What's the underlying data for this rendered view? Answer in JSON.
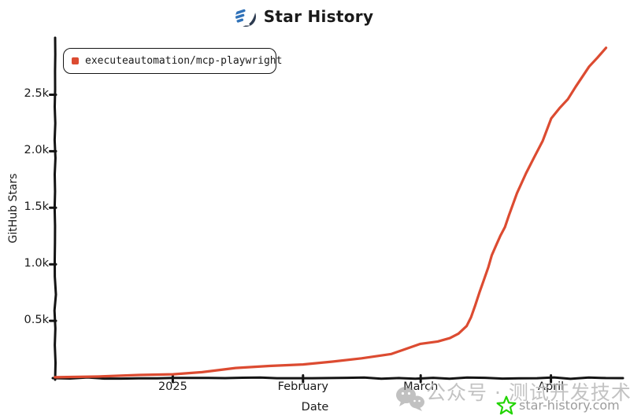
{
  "header": {
    "title": "Star History"
  },
  "brand": {
    "logo_navy": "#2c3a4f",
    "logo_blue": "#3072b8",
    "accent_red": "#dc4b31",
    "axis_black": "#141414",
    "watermark_gray": "#bcbcbc",
    "star_green": "#21d400"
  },
  "legend": {
    "series_label": "executeautomation/mcp-playwright",
    "marker_color": "#dc4b31"
  },
  "axes": {
    "y_label": "GitHub Stars",
    "x_label": "Date",
    "y_ticks": [
      {
        "label": "0.5k",
        "value": 500
      },
      {
        "label": "1.0k",
        "value": 1000
      },
      {
        "label": "1.5k",
        "value": 1500
      },
      {
        "label": "2.0k",
        "value": 2000
      },
      {
        "label": "2.5k",
        "value": 2500
      }
    ],
    "x_ticks": [
      {
        "label": "2025",
        "date": "2025-01-01"
      },
      {
        "label": "February",
        "date": "2025-02-01"
      },
      {
        "label": "March",
        "date": "2025-03-01"
      },
      {
        "label": "April",
        "date": "2025-04-01"
      }
    ]
  },
  "watermark": {
    "wechat_text": "公众号 · 测试开发技术",
    "site_text": "star-history.com"
  },
  "chart_data": {
    "type": "line",
    "title": "Star History",
    "xlabel": "Date",
    "ylabel": "GitHub Stars",
    "x_range": [
      "2024-12-04",
      "2025-04-14"
    ],
    "ylim": [
      0,
      2990
    ],
    "grid": false,
    "legend_position": "top-left",
    "series": [
      {
        "name": "executeautomation/mcp-playwright",
        "color": "#dc4b31",
        "points": [
          [
            "2024-12-04",
            0
          ],
          [
            "2024-12-14",
            8
          ],
          [
            "2024-12-24",
            18
          ],
          [
            "2025-01-01",
            26
          ],
          [
            "2025-01-08",
            48
          ],
          [
            "2025-01-16",
            80
          ],
          [
            "2025-01-24",
            96
          ],
          [
            "2025-02-01",
            112
          ],
          [
            "2025-02-08",
            140
          ],
          [
            "2025-02-15",
            170
          ],
          [
            "2025-02-22",
            210
          ],
          [
            "2025-03-01",
            298
          ],
          [
            "2025-03-05",
            322
          ],
          [
            "2025-03-08",
            345
          ],
          [
            "2025-03-10",
            388
          ],
          [
            "2025-03-12",
            450
          ],
          [
            "2025-03-13",
            530
          ],
          [
            "2025-03-14",
            640
          ],
          [
            "2025-03-15",
            750
          ],
          [
            "2025-03-16",
            850
          ],
          [
            "2025-03-17",
            980
          ],
          [
            "2025-03-18",
            1080
          ],
          [
            "2025-03-19",
            1170
          ],
          [
            "2025-03-20",
            1255
          ],
          [
            "2025-03-21",
            1330
          ],
          [
            "2025-03-22",
            1430
          ],
          [
            "2025-03-24",
            1630
          ],
          [
            "2025-03-26",
            1805
          ],
          [
            "2025-03-28",
            1940
          ],
          [
            "2025-03-30",
            2090
          ],
          [
            "2025-04-01",
            2290
          ],
          [
            "2025-04-03",
            2385
          ],
          [
            "2025-04-05",
            2465
          ],
          [
            "2025-04-07",
            2575
          ],
          [
            "2025-04-10",
            2745
          ],
          [
            "2025-04-12",
            2830
          ],
          [
            "2025-04-14",
            2910
          ]
        ]
      }
    ]
  }
}
